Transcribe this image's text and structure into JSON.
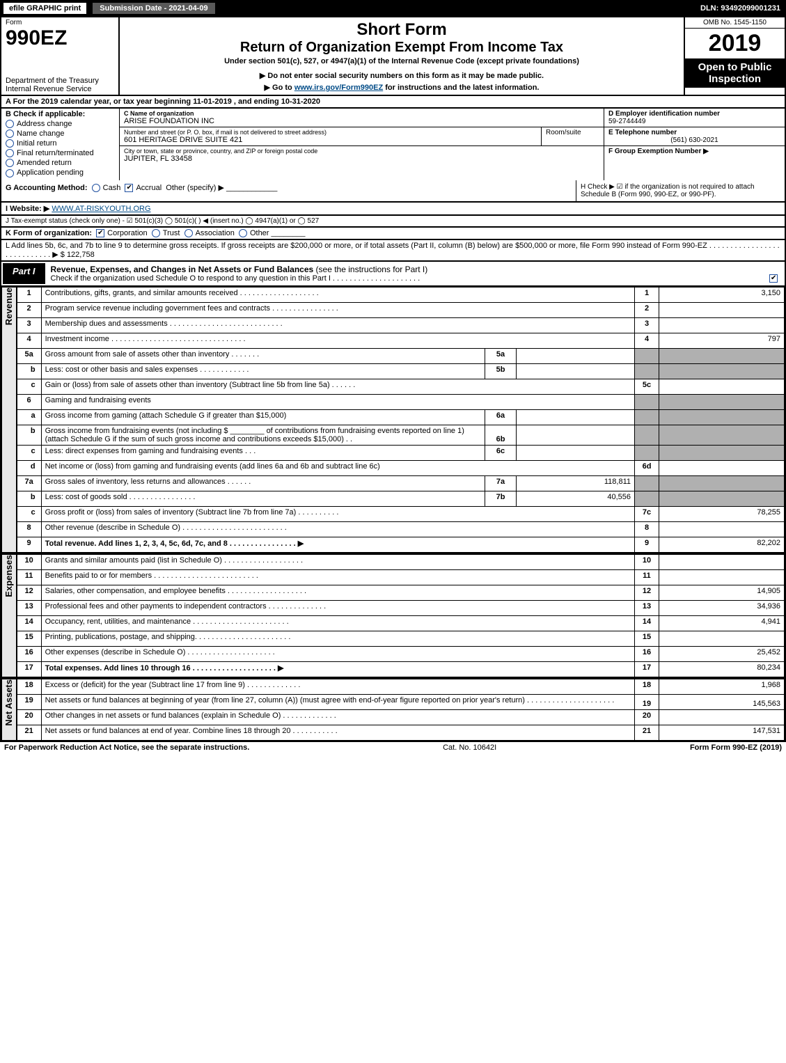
{
  "topbar": {
    "efile": "efile GRAPHIC print",
    "sub_label": "Submission Date - 2021-04-09",
    "dln": "DLN: 93492099001231"
  },
  "header": {
    "form": "Form",
    "formno": "990EZ",
    "dept": "Department of the Treasury\nInternal Revenue Service",
    "short": "Short Form",
    "title": "Return of Organization Exempt From Income Tax",
    "sub": "Under section 501(c), 527, or 4947(a)(1) of the Internal Revenue Code (except private foundations)",
    "note": "▶ Do not enter social security numbers on this form as it may be made public.",
    "goto_prefix": "▶ Go to ",
    "goto_link": "www.irs.gov/Form990EZ",
    "goto_suffix": " for instructions and the latest information.",
    "omb": "OMB No. 1545-1150",
    "year": "2019",
    "open": "Open to Public Inspection"
  },
  "rowA": "A  For the 2019 calendar year, or tax year beginning 11-01-2019 , and ending 10-31-2020",
  "colB": {
    "hdr": "B  Check if applicable:",
    "o1": "Address change",
    "o2": "Name change",
    "o3": "Initial return",
    "o4": "Final return/terminated",
    "o5": "Amended return",
    "o6": "Application pending"
  },
  "colC": {
    "lbl1": "C Name of organization",
    "org": "ARISE FOUNDATION INC",
    "lbl2": "Number and street (or P. O. box, if mail is not delivered to street address)",
    "street": "601 HERITAGE DRIVE SUITE 421",
    "room_lbl": "Room/suite",
    "lbl3": "City or town, state or province, country, and ZIP or foreign postal code",
    "city": "JUPITER, FL  33458"
  },
  "colD": {
    "lbl": "D Employer identification number",
    "val": "59-2744449"
  },
  "colE": {
    "lbl": "E Telephone number",
    "val": "(561) 630-2021"
  },
  "colF": {
    "lbl": "F Group Exemption Number   ▶"
  },
  "rowG": {
    "lbl": "G Accounting Method:",
    "o1": "Cash",
    "o2": "Accrual",
    "o3": "Other (specify) ▶"
  },
  "rowH": "H  Check ▶ ☑ if the organization is not required to attach Schedule B (Form 990, 990-EZ, or 990-PF).",
  "rowI": {
    "lbl": "I Website: ▶",
    "val": "WWW.AT-RISKYOUTH.ORG"
  },
  "rowJ": "J Tax-exempt status (check only one) - ☑ 501(c)(3)  ◯ 501(c)(  ) ◀ (insert no.)  ◯ 4947(a)(1) or  ◯ 527",
  "rowK": {
    "lbl": "K Form of organization:",
    "o1": "Corporation",
    "o2": "Trust",
    "o3": "Association",
    "o4": "Other"
  },
  "rowL": {
    "text": "L Add lines 5b, 6c, and 7b to line 9 to determine gross receipts. If gross receipts are $200,000 or more, or if total assets (Part II, column (B) below) are $500,000 or more, file Form 990 instead of Form 990-EZ . . . . . . . . . . . . . . . . . . . . . . . . . . . . ▶ ",
    "val": "$ 122,758"
  },
  "partI": {
    "tab": "Part I",
    "title": "Revenue, Expenses, and Changes in Net Assets or Fund Balances",
    "note": "(see the instructions for Part I)",
    "sub": "Check if the organization used Schedule O to respond to any question in this Part I . . . . . . . . . . . . . . . . . . . . ."
  },
  "sections": {
    "revenue": "Revenue",
    "expenses": "Expenses",
    "netassets": "Net Assets"
  },
  "lines": {
    "l1": {
      "no": "1",
      "txt": "Contributions, gifts, grants, and similar amounts received . . . . . . . . . . . . . . . . . . .",
      "r": "1",
      "v": "3,150"
    },
    "l2": {
      "no": "2",
      "txt": "Program service revenue including government fees and contracts . . . . . . . . . . . . . . . .",
      "r": "2",
      "v": ""
    },
    "l3": {
      "no": "3",
      "txt": "Membership dues and assessments . . . . . . . . . . . . . . . . . . . . . . . . . . .",
      "r": "3",
      "v": ""
    },
    "l4": {
      "no": "4",
      "txt": "Investment income . . . . . . . . . . . . . . . . . . . . . . . . . . . . . . . .",
      "r": "4",
      "v": "797"
    },
    "l5a": {
      "no": "5a",
      "txt": "Gross amount from sale of assets other than inventory . . . . . . .",
      "sn": "5a",
      "sv": ""
    },
    "l5b": {
      "no": "b",
      "txt": "Less: cost or other basis and sales expenses . . . . . . . . . . . .",
      "sn": "5b",
      "sv": ""
    },
    "l5c": {
      "no": "c",
      "txt": "Gain or (loss) from sale of assets other than inventory (Subtract line 5b from line 5a) . . . . . .",
      "r": "5c",
      "v": ""
    },
    "l6": {
      "no": "6",
      "txt": "Gaming and fundraising events"
    },
    "l6a": {
      "no": "a",
      "txt": "Gross income from gaming (attach Schedule G if greater than $15,000)",
      "sn": "6a",
      "sv": ""
    },
    "l6b": {
      "no": "b",
      "txt": "Gross income from fundraising events (not including $ ________ of contributions from fundraising events reported on line 1) (attach Schedule G if the sum of such gross income and contributions exceeds $15,000)    . .",
      "sn": "6b",
      "sv": ""
    },
    "l6c": {
      "no": "c",
      "txt": "Less: direct expenses from gaming and fundraising events     . . .",
      "sn": "6c",
      "sv": ""
    },
    "l6d": {
      "no": "d",
      "txt": "Net income or (loss) from gaming and fundraising events (add lines 6a and 6b and subtract line 6c)",
      "r": "6d",
      "v": ""
    },
    "l7a": {
      "no": "7a",
      "txt": "Gross sales of inventory, less returns and allowances . . . . . .",
      "sn": "7a",
      "sv": "118,811"
    },
    "l7b": {
      "no": "b",
      "txt": "Less: cost of goods sold       . . . . . . . . . . . . . . . .",
      "sn": "7b",
      "sv": "40,556"
    },
    "l7c": {
      "no": "c",
      "txt": "Gross profit or (loss) from sales of inventory (Subtract line 7b from line 7a) . . . . . . . . . .",
      "r": "7c",
      "v": "78,255"
    },
    "l8": {
      "no": "8",
      "txt": "Other revenue (describe in Schedule O) . . . . . . . . . . . . . . . . . . . . . . . . .",
      "r": "8",
      "v": ""
    },
    "l9": {
      "no": "9",
      "txt": "Total revenue. Add lines 1, 2, 3, 4, 5c, 6d, 7c, and 8  . . . . . . . . . . . . . . . .  ▶",
      "r": "9",
      "v": "82,202"
    },
    "l10": {
      "no": "10",
      "txt": "Grants and similar amounts paid (list in Schedule O) . . . . . . . . . . . . . . . . . . .",
      "r": "10",
      "v": ""
    },
    "l11": {
      "no": "11",
      "txt": "Benefits paid to or for members     . . . . . . . . . . . . . . . . . . . . . . . . .",
      "r": "11",
      "v": ""
    },
    "l12": {
      "no": "12",
      "txt": "Salaries, other compensation, and employee benefits . . . . . . . . . . . . . . . . . . .",
      "r": "12",
      "v": "14,905"
    },
    "l13": {
      "no": "13",
      "txt": "Professional fees and other payments to independent contractors . . . . . . . . . . . . . .",
      "r": "13",
      "v": "34,936"
    },
    "l14": {
      "no": "14",
      "txt": "Occupancy, rent, utilities, and maintenance . . . . . . . . . . . . . . . . . . . . . . .",
      "r": "14",
      "v": "4,941"
    },
    "l15": {
      "no": "15",
      "txt": "Printing, publications, postage, and shipping. . . . . . . . . . . . . . . . . . . . . . .",
      "r": "15",
      "v": ""
    },
    "l16": {
      "no": "16",
      "txt": "Other expenses (describe in Schedule O)     . . . . . . . . . . . . . . . . . . . . .",
      "r": "16",
      "v": "25,452"
    },
    "l17": {
      "no": "17",
      "txt": "Total expenses. Add lines 10 through 16     . . . . . . . . . . . . . . . . . . . . ▶",
      "r": "17",
      "v": "80,234"
    },
    "l18": {
      "no": "18",
      "txt": "Excess or (deficit) for the year (Subtract line 17 from line 9)       . . . . . . . . . . . . .",
      "r": "18",
      "v": "1,968"
    },
    "l19": {
      "no": "19",
      "txt": "Net assets or fund balances at beginning of year (from line 27, column (A)) (must agree with end-of-year figure reported on prior year's return) . . . . . . . . . . . . . . . . . . . . .",
      "r": "19",
      "v": "145,563"
    },
    "l20": {
      "no": "20",
      "txt": "Other changes in net assets or fund balances (explain in Schedule O) . . . . . . . . . . . . .",
      "r": "20",
      "v": ""
    },
    "l21": {
      "no": "21",
      "txt": "Net assets or fund balances at end of year. Combine lines 18 through 20 . . . . . . . . . . .",
      "r": "21",
      "v": "147,531"
    }
  },
  "footer": {
    "left": "For Paperwork Reduction Act Notice, see the separate instructions.",
    "mid": "Cat. No. 10642I",
    "right": "Form 990-EZ (2019)"
  },
  "colors": {
    "black": "#000000",
    "grey_shade": "#b0b0b0",
    "link": "#004b87",
    "check_border": "#2050a0"
  }
}
